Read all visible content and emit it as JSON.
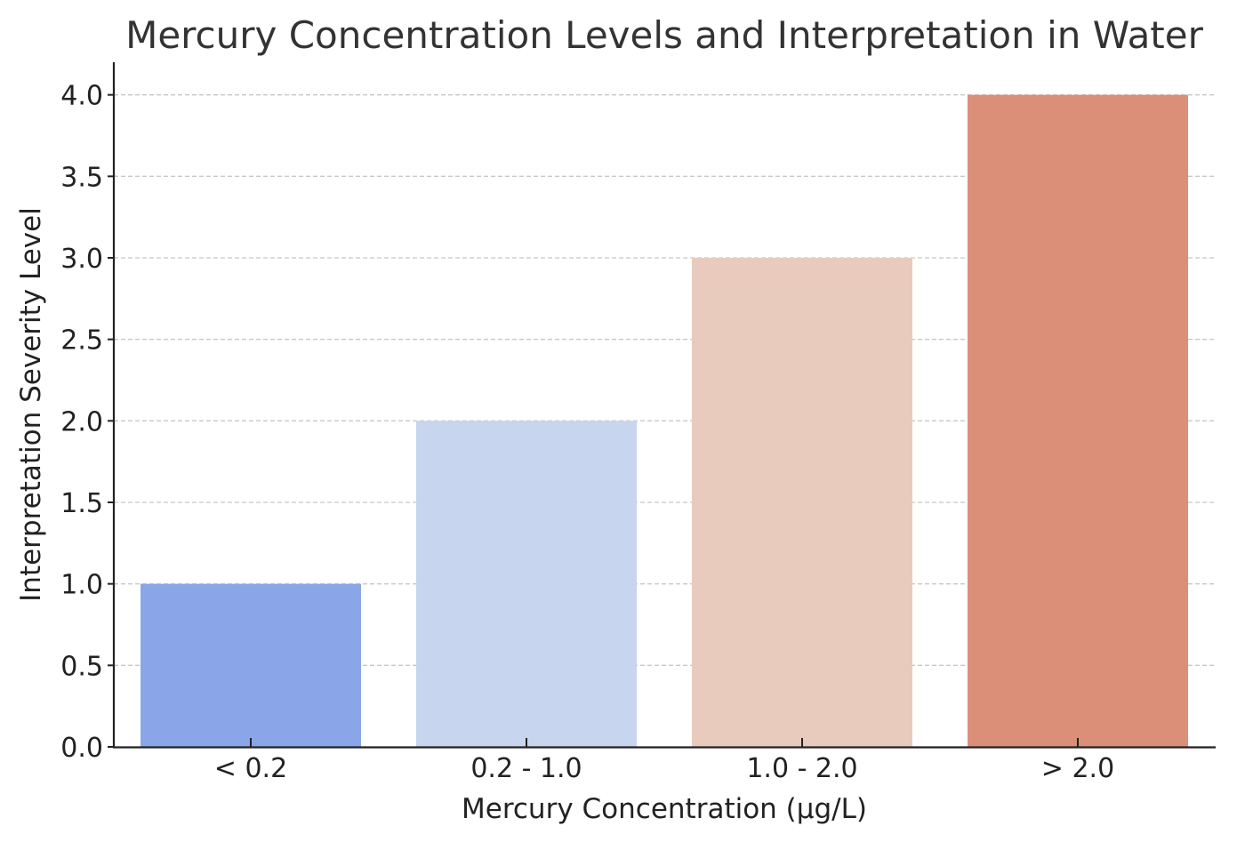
{
  "chart_data": {
    "type": "bar",
    "title": "Mercury Concentration Levels and Interpretation in Water",
    "xlabel": "Mercury Concentration (µg/L)",
    "ylabel": "Interpretation Severity Level",
    "categories": [
      "< 0.2",
      "0.2 - 1.0",
      "1.0 - 2.0",
      "> 2.0"
    ],
    "values": [
      1,
      2,
      3,
      4
    ],
    "colors": [
      "#8aa6e8",
      "#c7d5ee",
      "#e8cbbd",
      "#db8e78"
    ],
    "ylim": [
      0,
      4.2
    ],
    "yticks": [
      "0.0",
      "0.5",
      "1.0",
      "1.5",
      "2.0",
      "2.5",
      "3.0",
      "3.5",
      "4.0"
    ],
    "grid": "y",
    "legend": "none"
  }
}
